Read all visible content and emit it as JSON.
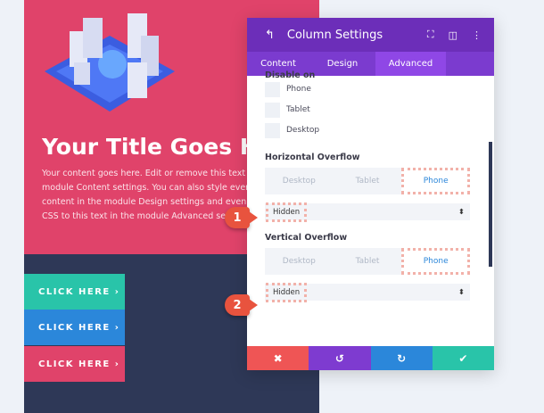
{
  "page": {
    "title": "Your Title Goes He",
    "body_lines": [
      "Your content goes here. Edit or remove this text inl",
      "module Content settings. You can also style every a",
      "content in the module Design settings and even ap",
      "CSS to this text in the module Advanced settin"
    ],
    "buttons": [
      {
        "label": "CLICK HERE  ›",
        "color": "#29c4a9"
      },
      {
        "label": "CLICK HERE  ›",
        "color": "#2b87da"
      },
      {
        "label": "CLICK HERE  ›",
        "color": "#e0436a"
      }
    ]
  },
  "panel": {
    "title": "Column Settings",
    "tabs": [
      "Content",
      "Design",
      "Advanced"
    ],
    "active_tab": "Advanced",
    "disable_on": {
      "label": "Disable on",
      "options": [
        "Phone",
        "Tablet",
        "Desktop"
      ]
    },
    "horizontal": {
      "label": "Horizontal Overflow",
      "devices": [
        "Desktop",
        "Tablet",
        "Phone"
      ],
      "active": "Phone",
      "value": "Hidden"
    },
    "vertical": {
      "label": "Vertical Overflow",
      "devices": [
        "Desktop",
        "Tablet",
        "Phone"
      ],
      "active": "Phone",
      "value": "Hidden"
    },
    "footer": [
      {
        "icon": "close-icon",
        "glyph": "✖",
        "color": "#ef5555"
      },
      {
        "icon": "undo-icon",
        "glyph": "↺",
        "color": "#7e3bd0"
      },
      {
        "icon": "redo-icon",
        "glyph": "↻",
        "color": "#2b87da"
      },
      {
        "icon": "check-icon",
        "glyph": "✔",
        "color": "#29c4a9"
      }
    ]
  },
  "badges": [
    "1",
    "2"
  ]
}
